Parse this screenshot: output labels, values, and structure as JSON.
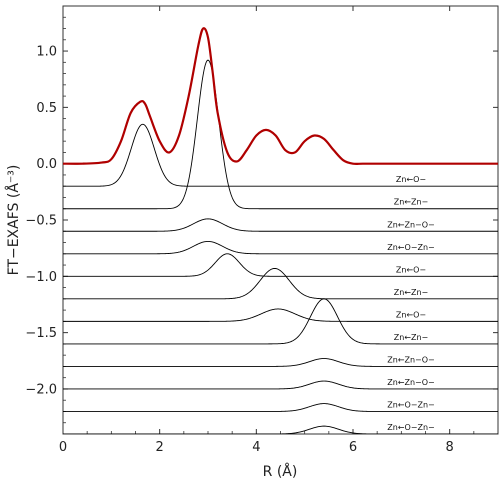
{
  "chart_data": {
    "type": "line",
    "xlabel": "R (Å)",
    "ylabel": "FT−EXAFS (Å⁻³)",
    "xlim": [
      0,
      9
    ],
    "ylim": [
      -2.4,
      1.4
    ],
    "x_ticks": [
      {
        "value": 0,
        "label": "0"
      },
      {
        "value": 2,
        "label": "2"
      },
      {
        "value": 4,
        "label": "4"
      },
      {
        "value": 6,
        "label": "6"
      },
      {
        "value": 8,
        "label": "8"
      }
    ],
    "y_ticks": [
      {
        "value": 1.0,
        "label": "1.0"
      },
      {
        "value": 0.5,
        "label": "0.5"
      },
      {
        "value": 0.0,
        "label": "0.0"
      },
      {
        "value": -0.5,
        "label": "−0.5"
      },
      {
        "value": -1.0,
        "label": "−1.0"
      },
      {
        "value": -1.5,
        "label": "−1.5"
      },
      {
        "value": -2.0,
        "label": "−2.0"
      }
    ],
    "total": {
      "color": "#b00000",
      "x": [
        0,
        0.4,
        0.8,
        1.0,
        1.2,
        1.4,
        1.6,
        1.7,
        1.8,
        2.0,
        2.2,
        2.4,
        2.6,
        2.8,
        2.9,
        3.0,
        3.1,
        3.2,
        3.4,
        3.6,
        3.8,
        4.0,
        4.2,
        4.4,
        4.6,
        4.8,
        5.0,
        5.2,
        5.4,
        5.6,
        5.8,
        6.0,
        6.2,
        6.5,
        9.0
      ],
      "y": [
        0.0,
        0.0,
        0.01,
        0.04,
        0.2,
        0.45,
        0.55,
        0.53,
        0.42,
        0.2,
        0.1,
        0.25,
        0.6,
        1.05,
        1.2,
        1.12,
        0.8,
        0.45,
        0.1,
        0.02,
        0.12,
        0.25,
        0.3,
        0.25,
        0.12,
        0.1,
        0.2,
        0.25,
        0.22,
        0.12,
        0.03,
        0.0,
        0.0,
        0.0,
        0.0
      ]
    },
    "paths": [
      {
        "label": "Zn←O−",
        "offset": -0.2,
        "center": 1.65,
        "width": 0.24,
        "amp": 0.55
      },
      {
        "label": "Zn←Zn−",
        "offset": -0.4,
        "center": 3.0,
        "width": 0.22,
        "amp": 1.32
      },
      {
        "label": "Zn←Zn−O−",
        "offset": -0.6,
        "center": 3.0,
        "width": 0.3,
        "amp": 0.11
      },
      {
        "label": "Zn←O−Zn−",
        "offset": -0.8,
        "center": 3.0,
        "width": 0.3,
        "amp": 0.11
      },
      {
        "label": "Zn←O−",
        "offset": -1.0,
        "center": 3.4,
        "width": 0.25,
        "amp": 0.2
      },
      {
        "label": "Zn←Zn−",
        "offset": -1.2,
        "center": 4.38,
        "width": 0.3,
        "amp": 0.27
      },
      {
        "label": "Zn←O−",
        "offset": -1.4,
        "center": 4.45,
        "width": 0.35,
        "amp": 0.11
      },
      {
        "label": "Zn←Zn−",
        "offset": -1.6,
        "center": 5.4,
        "width": 0.28,
        "amp": 0.4
      },
      {
        "label": "Zn←Zn−O−",
        "offset": -1.8,
        "center": 5.4,
        "width": 0.3,
        "amp": 0.07
      },
      {
        "label": "Zn←Zn−O−",
        "offset": -2.0,
        "center": 5.4,
        "width": 0.3,
        "amp": 0.07
      },
      {
        "label": "Zn←O−Zn−",
        "offset": -2.2,
        "center": 5.4,
        "width": 0.3,
        "amp": 0.07
      },
      {
        "label": "Zn←O−Zn−",
        "offset": -2.4,
        "center": 5.4,
        "width": 0.3,
        "amp": 0.07
      }
    ],
    "path_label_x": 7.2,
    "grid": false,
    "legend": "none"
  }
}
